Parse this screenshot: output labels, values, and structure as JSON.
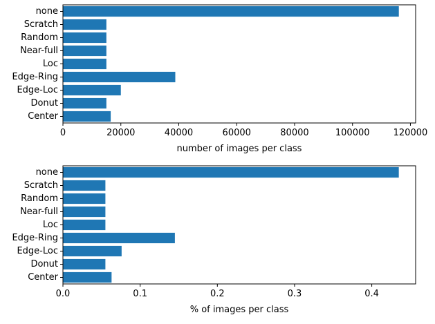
{
  "colors": {
    "bar": "#1f77b4",
    "axis": "#000000",
    "background": "#ffffff"
  },
  "chart_data": [
    {
      "type": "bar",
      "orientation": "horizontal",
      "categories": [
        "Center",
        "Donut",
        "Edge-Loc",
        "Edge-Ring",
        "Loc",
        "Near-full",
        "Random",
        "Scratch",
        "none"
      ],
      "values": [
        16500,
        15000,
        20000,
        38800,
        15000,
        15000,
        15000,
        15000,
        116000
      ],
      "xlabel": "number of images per class",
      "ylabel": "",
      "title": "",
      "xlim": [
        0,
        121800
      ],
      "xticks": [
        0,
        20000,
        40000,
        60000,
        80000,
        100000,
        120000
      ],
      "xtick_labels": [
        "0",
        "20000",
        "40000",
        "60000",
        "80000",
        "100000",
        "120000"
      ],
      "grid": false,
      "legend": "none"
    },
    {
      "type": "bar",
      "orientation": "horizontal",
      "categories": [
        "Center",
        "Donut",
        "Edge-Loc",
        "Edge-Ring",
        "Loc",
        "Near-full",
        "Random",
        "Scratch",
        "none"
      ],
      "values": [
        0.063,
        0.055,
        0.076,
        0.145,
        0.055,
        0.055,
        0.055,
        0.055,
        0.435
      ],
      "xlabel": "% of images per class",
      "ylabel": "",
      "title": "",
      "xlim": [
        0,
        0.4568
      ],
      "xticks": [
        0.0,
        0.1,
        0.2,
        0.3,
        0.4
      ],
      "xtick_labels": [
        "0.0",
        "0.1",
        "0.2",
        "0.3",
        "0.4"
      ],
      "grid": false,
      "legend": "none"
    }
  ]
}
